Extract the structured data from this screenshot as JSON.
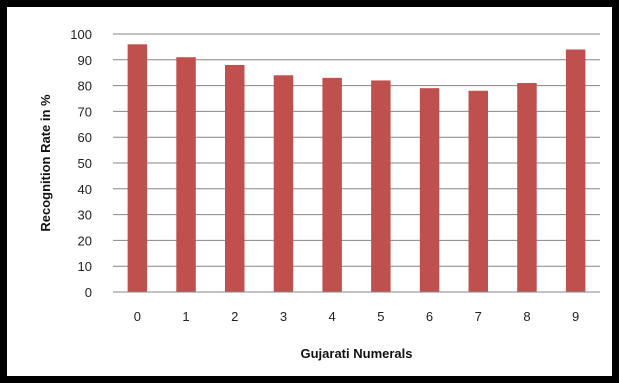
{
  "chart_data": {
    "type": "bar",
    "categories": [
      "0",
      "1",
      "2",
      "3",
      "4",
      "5",
      "6",
      "7",
      "8",
      "9"
    ],
    "series": [
      {
        "values": [
          96,
          91,
          88,
          84,
          83,
          82,
          79,
          78,
          81,
          94
        ]
      }
    ],
    "xlabel": "Gujarati Numerals",
    "ylabel": "Recognition Rate in %",
    "ylim": [
      0,
      100
    ],
    "yticks": [
      0,
      10,
      20,
      30,
      40,
      50,
      60,
      70,
      80,
      90,
      100
    ],
    "grid": true,
    "bar_color": "#C0504D",
    "gridline_color": "#868686"
  }
}
